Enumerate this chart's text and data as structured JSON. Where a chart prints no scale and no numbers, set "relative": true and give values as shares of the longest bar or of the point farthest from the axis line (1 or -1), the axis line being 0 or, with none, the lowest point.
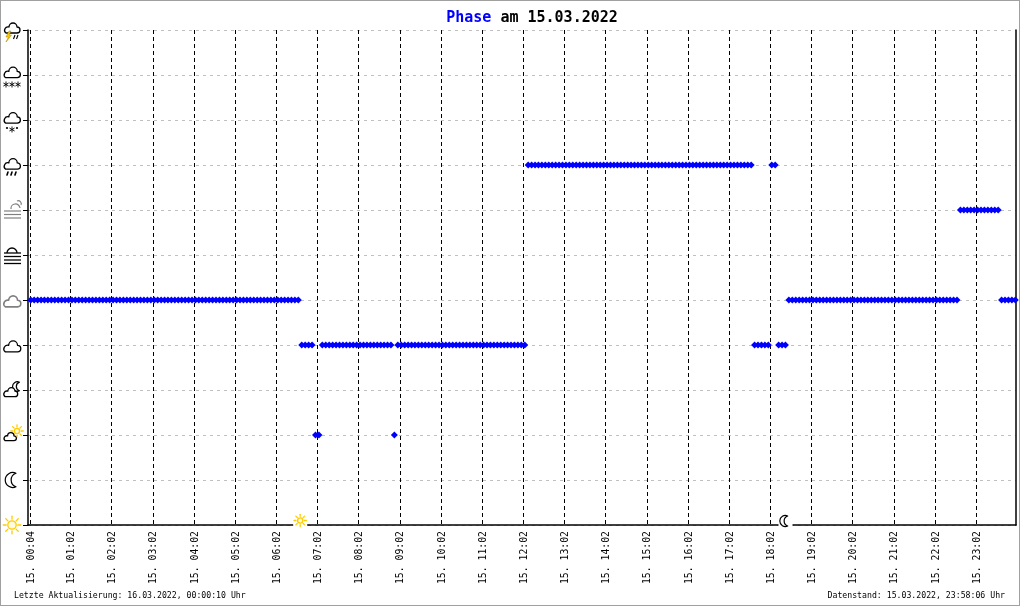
{
  "chart_data": {
    "type": "scatter",
    "title": "Phase am 15.03.2022",
    "annotations": [
      "Letzte Aktualisierung: 16.03.2022, 00:00:10 Uhr",
      "Datenstand: 15.03.2022, 23:58:06 Uhr"
    ],
    "color": "#0000ff",
    "marker": "diamond",
    "grid": true,
    "relative": true,
    "xlim": [
      "2022-03-15T00:00",
      "2022-03-16T00:00"
    ],
    "xticks": [
      {
        "value": "2022-03-15T00:04",
        "label": "15. 00:04"
      },
      {
        "value": "2022-03-15T01:02",
        "label": "15. 01:02"
      },
      {
        "value": "2022-03-15T02:02",
        "label": "15. 02:02"
      },
      {
        "value": "2022-03-15T03:02",
        "label": "15. 03:02"
      },
      {
        "value": "2022-03-15T04:02",
        "label": "15. 04:02"
      },
      {
        "value": "2022-03-15T05:02",
        "label": "15. 05:02"
      },
      {
        "value": "2022-03-15T06:02",
        "label": "15. 06:02"
      },
      {
        "value": "2022-03-15T07:02",
        "label": "15. 07:02"
      },
      {
        "value": "2022-03-15T08:02",
        "label": "15. 08:02"
      },
      {
        "value": "2022-03-15T09:02",
        "label": "15. 09:02"
      },
      {
        "value": "2022-03-15T10:02",
        "label": "15. 10:02"
      },
      {
        "value": "2022-03-15T11:02",
        "label": "15. 11:02"
      },
      {
        "value": "2022-03-15T12:02",
        "label": "15. 12:02"
      },
      {
        "value": "2022-03-15T13:02",
        "label": "15. 13:02"
      },
      {
        "value": "2022-03-15T14:02",
        "label": "15. 14:02"
      },
      {
        "value": "2022-03-15T15:02",
        "label": "15. 15:02"
      },
      {
        "value": "2022-03-15T16:02",
        "label": "15. 16:02"
      },
      {
        "value": "2022-03-15T17:02",
        "label": "15. 17:02"
      },
      {
        "value": "2022-03-15T18:02",
        "label": "15. 18:02"
      },
      {
        "value": "2022-03-15T19:02",
        "label": "15. 19:02"
      },
      {
        "value": "2022-03-15T20:02",
        "label": "15. 20:02"
      },
      {
        "value": "2022-03-15T21:02",
        "label": "15. 21:02"
      },
      {
        "value": "2022-03-15T22:02",
        "label": "15. 22:02"
      },
      {
        "value": "2022-03-15T23:02",
        "label": "15. 23:02"
      }
    ],
    "x": [
      "2022-03-15T00:04",
      "2022-03-15T00:09",
      "2022-03-15T00:14",
      "2022-03-15T00:19",
      "2022-03-15T00:24",
      "2022-03-15T00:29",
      "2022-03-15T00:34",
      "2022-03-15T00:39",
      "2022-03-15T00:44",
      "2022-03-15T00:49",
      "2022-03-15T00:54",
      "2022-03-15T00:59",
      "2022-03-15T01:04",
      "2022-03-15T01:09",
      "2022-03-15T01:14",
      "2022-03-15T01:19",
      "2022-03-15T01:24",
      "2022-03-15T01:29",
      "2022-03-15T01:34",
      "2022-03-15T01:39",
      "2022-03-15T01:44",
      "2022-03-15T01:49",
      "2022-03-15T01:54",
      "2022-03-15T01:59",
      "2022-03-15T02:04",
      "2022-03-15T02:09",
      "2022-03-15T02:14",
      "2022-03-15T02:19",
      "2022-03-15T02:24",
      "2022-03-15T02:29",
      "2022-03-15T02:34",
      "2022-03-15T02:39",
      "2022-03-15T02:44",
      "2022-03-15T02:49",
      "2022-03-15T02:54",
      "2022-03-15T02:59",
      "2022-03-15T03:04",
      "2022-03-15T03:09",
      "2022-03-15T03:14",
      "2022-03-15T03:19",
      "2022-03-15T03:24",
      "2022-03-15T03:29",
      "2022-03-15T03:34",
      "2022-03-15T03:39",
      "2022-03-15T03:44",
      "2022-03-15T03:49",
      "2022-03-15T03:54",
      "2022-03-15T03:59",
      "2022-03-15T04:04",
      "2022-03-15T04:09",
      "2022-03-15T04:14",
      "2022-03-15T04:19",
      "2022-03-15T04:24",
      "2022-03-15T04:29",
      "2022-03-15T04:34",
      "2022-03-15T04:39",
      "2022-03-15T04:44",
      "2022-03-15T04:49",
      "2022-03-15T04:54",
      "2022-03-15T04:59",
      "2022-03-15T05:04",
      "2022-03-15T05:09",
      "2022-03-15T05:14",
      "2022-03-15T05:19",
      "2022-03-15T05:24",
      "2022-03-15T05:29",
      "2022-03-15T05:34",
      "2022-03-15T05:39",
      "2022-03-15T05:44",
      "2022-03-15T05:49",
      "2022-03-15T05:54",
      "2022-03-15T05:59",
      "2022-03-15T06:04",
      "2022-03-15T06:09",
      "2022-03-15T06:14",
      "2022-03-15T06:19",
      "2022-03-15T06:24",
      "2022-03-15T06:29",
      "2022-03-15T06:34",
      "2022-03-15T06:39",
      "2022-03-15T06:44",
      "2022-03-15T06:49",
      "2022-03-15T06:54",
      "2022-03-15T06:59",
      "2022-03-15T07:04",
      "2022-03-15T07:09",
      "2022-03-15T07:14",
      "2022-03-15T07:19",
      "2022-03-15T07:24",
      "2022-03-15T07:29",
      "2022-03-15T07:34",
      "2022-03-15T07:39",
      "2022-03-15T07:44",
      "2022-03-15T07:49",
      "2022-03-15T07:54",
      "2022-03-15T07:59",
      "2022-03-15T08:04",
      "2022-03-15T08:09",
      "2022-03-15T08:14",
      "2022-03-15T08:19",
      "2022-03-15T08:24",
      "2022-03-15T08:29",
      "2022-03-15T08:34",
      "2022-03-15T08:39",
      "2022-03-15T08:44",
      "2022-03-15T08:49",
      "2022-03-15T08:54",
      "2022-03-15T08:59",
      "2022-03-15T09:04",
      "2022-03-15T09:09",
      "2022-03-15T09:14",
      "2022-03-15T09:19",
      "2022-03-15T09:24",
      "2022-03-15T09:29",
      "2022-03-15T09:34",
      "2022-03-15T09:39",
      "2022-03-15T09:44",
      "2022-03-15T09:49",
      "2022-03-15T09:54",
      "2022-03-15T09:59",
      "2022-03-15T10:04",
      "2022-03-15T10:09",
      "2022-03-15T10:14",
      "2022-03-15T10:19",
      "2022-03-15T10:24",
      "2022-03-15T10:29",
      "2022-03-15T10:34",
      "2022-03-15T10:39",
      "2022-03-15T10:44",
      "2022-03-15T10:49",
      "2022-03-15T10:54",
      "2022-03-15T10:59",
      "2022-03-15T11:04",
      "2022-03-15T11:09",
      "2022-03-15T11:14",
      "2022-03-15T11:19",
      "2022-03-15T11:24",
      "2022-03-15T11:29",
      "2022-03-15T11:34",
      "2022-03-15T11:39",
      "2022-03-15T11:44",
      "2022-03-15T11:49",
      "2022-03-15T11:54",
      "2022-03-15T11:59",
      "2022-03-15T12:04",
      "2022-03-15T12:09",
      "2022-03-15T12:14",
      "2022-03-15T12:19",
      "2022-03-15T12:24",
      "2022-03-15T12:29",
      "2022-03-15T12:34",
      "2022-03-15T12:39",
      "2022-03-15T12:44",
      "2022-03-15T12:49",
      "2022-03-15T12:54",
      "2022-03-15T12:59",
      "2022-03-15T13:04",
      "2022-03-15T13:09",
      "2022-03-15T13:14",
      "2022-03-15T13:19",
      "2022-03-15T13:24",
      "2022-03-15T13:29",
      "2022-03-15T13:34",
      "2022-03-15T13:39",
      "2022-03-15T13:44",
      "2022-03-15T13:49",
      "2022-03-15T13:54",
      "2022-03-15T13:59",
      "2022-03-15T14:04",
      "2022-03-15T14:09",
      "2022-03-15T14:14",
      "2022-03-15T14:19",
      "2022-03-15T14:24",
      "2022-03-15T14:29",
      "2022-03-15T14:34",
      "2022-03-15T14:39",
      "2022-03-15T14:44",
      "2022-03-15T14:49",
      "2022-03-15T14:54",
      "2022-03-15T14:59",
      "2022-03-15T15:04",
      "2022-03-15T15:09",
      "2022-03-15T15:14",
      "2022-03-15T15:19",
      "2022-03-15T15:24",
      "2022-03-15T15:29",
      "2022-03-15T15:34",
      "2022-03-15T15:39",
      "2022-03-15T15:44",
      "2022-03-15T15:49",
      "2022-03-15T15:54",
      "2022-03-15T15:59",
      "2022-03-15T16:04",
      "2022-03-15T16:09",
      "2022-03-15T16:14",
      "2022-03-15T16:19",
      "2022-03-15T16:24",
      "2022-03-15T16:29",
      "2022-03-15T16:34",
      "2022-03-15T16:39",
      "2022-03-15T16:44",
      "2022-03-15T16:49",
      "2022-03-15T16:54",
      "2022-03-15T16:59",
      "2022-03-15T17:04",
      "2022-03-15T17:09",
      "2022-03-15T17:14",
      "2022-03-15T17:19",
      "2022-03-15T17:24",
      "2022-03-15T17:29",
      "2022-03-15T17:34",
      "2022-03-15T17:39",
      "2022-03-15T17:44",
      "2022-03-15T17:49",
      "2022-03-15T17:54",
      "2022-03-15T17:59",
      "2022-03-15T18:04",
      "2022-03-15T18:09",
      "2022-03-15T18:14",
      "2022-03-15T18:19",
      "2022-03-15T18:24",
      "2022-03-15T18:29",
      "2022-03-15T18:34",
      "2022-03-15T18:39",
      "2022-03-15T18:44",
      "2022-03-15T18:49",
      "2022-03-15T18:54",
      "2022-03-15T18:59",
      "2022-03-15T19:04",
      "2022-03-15T19:09",
      "2022-03-15T19:14",
      "2022-03-15T19:19",
      "2022-03-15T19:24",
      "2022-03-15T19:29",
      "2022-03-15T19:34",
      "2022-03-15T19:39",
      "2022-03-15T19:44",
      "2022-03-15T19:49",
      "2022-03-15T19:54",
      "2022-03-15T19:59",
      "2022-03-15T20:04",
      "2022-03-15T20:09",
      "2022-03-15T20:14",
      "2022-03-15T20:19",
      "2022-03-15T20:24",
      "2022-03-15T20:29",
      "2022-03-15T20:34",
      "2022-03-15T20:39",
      "2022-03-15T20:44",
      "2022-03-15T20:49",
      "2022-03-15T20:54",
      "2022-03-15T20:59",
      "2022-03-15T21:04",
      "2022-03-15T21:09",
      "2022-03-15T21:14",
      "2022-03-15T21:19",
      "2022-03-15T21:24",
      "2022-03-15T21:29",
      "2022-03-15T21:34",
      "2022-03-15T21:39",
      "2022-03-15T21:44",
      "2022-03-15T21:49",
      "2022-03-15T21:54",
      "2022-03-15T21:59",
      "2022-03-15T22:04",
      "2022-03-15T22:09",
      "2022-03-15T22:14",
      "2022-03-15T22:19",
      "2022-03-15T22:24",
      "2022-03-15T22:29",
      "2022-03-15T22:34",
      "2022-03-15T22:39",
      "2022-03-15T22:44",
      "2022-03-15T22:49",
      "2022-03-15T22:54",
      "2022-03-15T22:59",
      "2022-03-15T23:04",
      "2022-03-15T23:09",
      "2022-03-15T23:14",
      "2022-03-15T23:19",
      "2022-03-15T23:24",
      "2022-03-15T23:29",
      "2022-03-15T23:34",
      "2022-03-15T23:39",
      "2022-03-15T23:44",
      "2022-03-15T23:49",
      "2022-03-15T23:54",
      "2022-03-15T23:59"
    ],
    "values": [
      0.625,
      0.625,
      0.625,
      0.625,
      0.625,
      0.625,
      0.625,
      0.625,
      0.625,
      0.625,
      0.625,
      0.625,
      0.625,
      0.625,
      0.625,
      0.625,
      0.625,
      0.625,
      0.625,
      0.625,
      0.625,
      0.625,
      0.625,
      0.625,
      0.625,
      0.625,
      0.625,
      0.625,
      0.625,
      0.625,
      0.625,
      0.625,
      0.625,
      0.625,
      0.625,
      0.625,
      0.625,
      0.625,
      0.625,
      0.625,
      0.625,
      0.625,
      0.625,
      0.625,
      0.625,
      0.625,
      0.625,
      0.625,
      0.625,
      0.625,
      0.625,
      0.625,
      0.625,
      0.625,
      0.625,
      0.625,
      0.625,
      0.625,
      0.625,
      0.625,
      0.625,
      0.625,
      0.625,
      0.625,
      0.625,
      0.625,
      0.625,
      0.625,
      0.625,
      0.625,
      0.625,
      0.625,
      0.625,
      0.625,
      0.625,
      0.625,
      0.625,
      0.625,
      0.625,
      0.5,
      0.5,
      0.5,
      0.5,
      0.25,
      0.25,
      0.5,
      0.5,
      0.5,
      0.5,
      0.5,
      0.5,
      0.5,
      0.5,
      0.5,
      0.5,
      0.5,
      0.5,
      0.5,
      0.5,
      0.5,
      0.5,
      0.5,
      0.5,
      0.5,
      0.5,
      0.5,
      0.25,
      0.5,
      0.5,
      0.5,
      0.5,
      0.5,
      0.5,
      0.5,
      0.5,
      0.5,
      0.5,
      0.5,
      0.5,
      0.5,
      0.5,
      0.5,
      0.5,
      0.5,
      0.5,
      0.5,
      0.5,
      0.5,
      0.5,
      0.5,
      0.5,
      0.5,
      0.5,
      0.5,
      0.5,
      0.5,
      0.5,
      0.5,
      0.5,
      0.5,
      0.5,
      0.5,
      0.5,
      0.5,
      0.5,
      1,
      1,
      1,
      1,
      1,
      1,
      1,
      1,
      1,
      1,
      1,
      1,
      1,
      1,
      1,
      1,
      1,
      1,
      1,
      1,
      1,
      1,
      1,
      1,
      1,
      1,
      1,
      1,
      1,
      1,
      1,
      1,
      1,
      1,
      1,
      1,
      1,
      1,
      1,
      1,
      1,
      1,
      1,
      1,
      1,
      1,
      1,
      1,
      1,
      1,
      1,
      1,
      1,
      1,
      1,
      1,
      1,
      1,
      1,
      1,
      1,
      1,
      1,
      1,
      1,
      1,
      0.5,
      0.5,
      0.5,
      0.5,
      0.5,
      1,
      1,
      0.5,
      0.5,
      0.5,
      0.625,
      0.625,
      0.625,
      0.625,
      0.625,
      0.625,
      0.625,
      0.625,
      0.625,
      0.625,
      0.625,
      0.625,
      0.625,
      0.625,
      0.625,
      0.625,
      0.625,
      0.625,
      0.625,
      0.625,
      0.625,
      0.625,
      0.625,
      0.625,
      0.625,
      0.625,
      0.625,
      0.625,
      0.625,
      0.625,
      0.625,
      0.625,
      0.625,
      0.625,
      0.625,
      0.625,
      0.625,
      0.625,
      0.625,
      0.625,
      0.625,
      0.625,
      0.625,
      0.625,
      0.625,
      0.625,
      0.625,
      0.625,
      0.625,
      0.625,
      0.875,
      0.875,
      0.875,
      0.875,
      0.875,
      0.875,
      0.875,
      0.875,
      0.875,
      0.875,
      0.875,
      0.875,
      0.625,
      0.625,
      0.625,
      0.625,
      0.625
    ]
  }
}
